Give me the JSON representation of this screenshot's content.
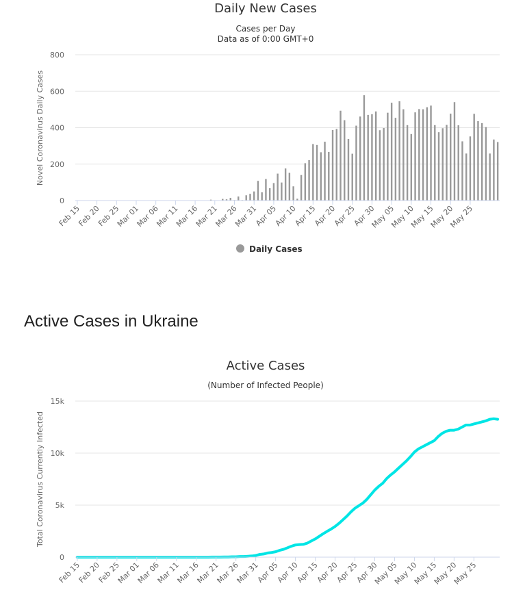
{
  "section_heading": "Active Cases in Ukraine",
  "chart_data": [
    {
      "type": "bar",
      "title": "Daily New Cases",
      "subtitle_lines": [
        "Cases per Day",
        "Data as of 0:00 GMT+0"
      ],
      "ylabel": "Novel Coronavirus Daily Cases",
      "ylim": [
        0,
        800
      ],
      "yticks": [
        0,
        200,
        400,
        600,
        800
      ],
      "ytick_labels": [
        "0",
        "200",
        "400",
        "600",
        "800"
      ],
      "x_start": "Feb 15",
      "x_tick_labels": [
        "Feb 15",
        "Feb 20",
        "Feb 25",
        "Mar 01",
        "Mar 06",
        "Mar 11",
        "Mar 16",
        "Mar 21",
        "Mar 26",
        "Mar 31",
        "Apr 05",
        "Apr 10",
        "Apr 15",
        "Apr 20",
        "Apr 25",
        "Apr 30",
        "May 05",
        "May 10",
        "May 15",
        "May 20",
        "May 25"
      ],
      "legend": [
        {
          "name": "Daily Cases",
          "color": "#999999"
        }
      ],
      "legend_position": "bottom-center",
      "bar_color": "#999999",
      "grid": true,
      "values": [
        0,
        0,
        0,
        0,
        0,
        0,
        0,
        0,
        0,
        0,
        0,
        0,
        0,
        0,
        0,
        0,
        0,
        0,
        0,
        0,
        0,
        0,
        0,
        0,
        0,
        0,
        0,
        0,
        0,
        0,
        1,
        0,
        0,
        1,
        5,
        0,
        1,
        9,
        7,
        15,
        3,
        22,
        3,
        29,
        37,
        50,
        108,
        45,
        118,
        68,
        96,
        148,
        99,
        176,
        152,
        78,
        10,
        140,
        205,
        222,
        310,
        305,
        265,
        323,
        267,
        387,
        393,
        493,
        441,
        338,
        257,
        411,
        461,
        578,
        470,
        474,
        489,
        386,
        398,
        482,
        537,
        454,
        545,
        501,
        414,
        365,
        484,
        502,
        501,
        512,
        521,
        414,
        375,
        397,
        415,
        477,
        540,
        413,
        325,
        258,
        352,
        476,
        436,
        425,
        403,
        258,
        335,
        321
      ]
    },
    {
      "type": "line",
      "title": "Active Cases",
      "subtitle": "(Number of Infected People)",
      "ylabel": "Total Coronavirus Currently Infected",
      "ylim": [
        0,
        15000
      ],
      "yticks": [
        0,
        5000,
        10000,
        15000
      ],
      "ytick_labels": [
        "0",
        "5k",
        "10k",
        "15k"
      ],
      "x_start": "Feb 15",
      "x_tick_labels": [
        "Feb 15",
        "Feb 20",
        "Feb 25",
        "Mar 01",
        "Mar 06",
        "Mar 11",
        "Mar 16",
        "Mar 21",
        "Mar 26",
        "Mar 31",
        "Apr 05",
        "Apr 10",
        "Apr 15",
        "Apr 20",
        "Apr 25",
        "Apr 30",
        "May 05",
        "May 10",
        "May 15",
        "May 20",
        "May 25"
      ],
      "line_color": "#00e5e5",
      "grid": true,
      "values": [
        0,
        0,
        0,
        0,
        0,
        0,
        0,
        0,
        0,
        0,
        0,
        0,
        0,
        0,
        0,
        0,
        0,
        0,
        0,
        0,
        0,
        0,
        0,
        0,
        0,
        0,
        0,
        0,
        0,
        0,
        1,
        1,
        1,
        2,
        6,
        6,
        7,
        16,
        22,
        35,
        36,
        58,
        60,
        85,
        115,
        160,
        260,
        300,
        400,
        450,
        520,
        650,
        750,
        900,
        1050,
        1170,
        1210,
        1230,
        1350,
        1550,
        1750,
        2000,
        2250,
        2480,
        2700,
        2950,
        3250,
        3600,
        3950,
        4350,
        4700,
        4950,
        5200,
        5550,
        6000,
        6450,
        6800,
        7100,
        7550,
        7900,
        8200,
        8550,
        8900,
        9250,
        9650,
        10100,
        10400,
        10600,
        10800,
        11000,
        11200,
        11600,
        11900,
        12100,
        12200,
        12200,
        12300,
        12500,
        12700,
        12700,
        12800,
        12900,
        13000,
        13100,
        13250,
        13300,
        13250
      ]
    }
  ]
}
